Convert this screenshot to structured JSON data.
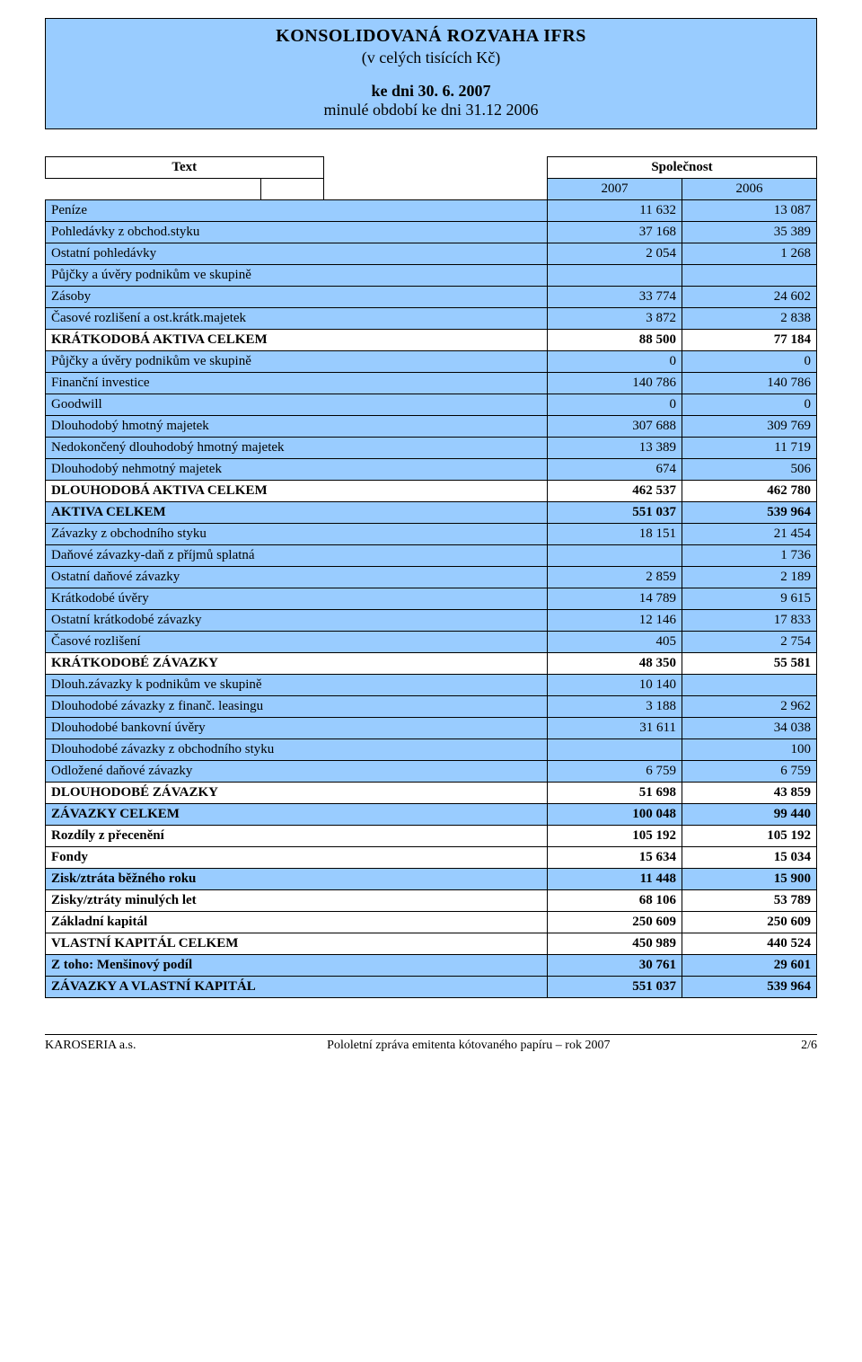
{
  "title": {
    "main": "KONSOLIDOVANÁ  ROZVAHA  IFRS",
    "sub": "(v celých tisících Kč)",
    "date1": "ke dni 30. 6. 2007",
    "date2": "minulé období  ke dni 31.12 2006"
  },
  "header": {
    "text": "Text",
    "company": "Společnost",
    "year1": "2007",
    "year2": "2006"
  },
  "rows": [
    {
      "label": "Peníze",
      "v1": "11 632",
      "v2": "13 087",
      "blue": true
    },
    {
      "label": "Pohledávky z obchod.styku",
      "v1": "37 168",
      "v2": "35 389",
      "blue": true
    },
    {
      "label": "Ostatní pohledávky",
      "v1": "2 054",
      "v2": "1 268",
      "blue": true
    },
    {
      "label": "Půjčky a úvěry podnikům ve skupině",
      "v1": "",
      "v2": "",
      "blue": true
    },
    {
      "label": "Zásoby",
      "v1": "33 774",
      "v2": "24 602",
      "blue": true
    },
    {
      "label": "Časové rozlišení a ost.krátk.majetek",
      "v1": "3 872",
      "v2": "2 838",
      "blue": true
    },
    {
      "label": "KRÁTKODOBÁ AKTIVA CELKEM",
      "v1": "88 500",
      "v2": "77 184",
      "bold": true
    },
    {
      "label": "Půjčky a úvěry podnikům ve skupině",
      "v1": "0",
      "v2": "0",
      "blue": true
    },
    {
      "label": "Finanční investice",
      "v1": "140 786",
      "v2": "140 786",
      "blue": true
    },
    {
      "label": "Goodwill",
      "v1": "0",
      "v2": "0",
      "blue": true
    },
    {
      "label": "Dlouhodobý hmotný majetek",
      "v1": "307 688",
      "v2": "309 769",
      "blue": true
    },
    {
      "label": "Nedokončený dlouhodobý hmotný majetek",
      "v1": "13 389",
      "v2": "11 719",
      "blue": true
    },
    {
      "label": "Dlouhodobý nehmotný majetek",
      "v1": "674",
      "v2": "506",
      "blue": true
    },
    {
      "label": "DLOUHODOBÁ AKTIVA CELKEM",
      "v1": "462 537",
      "v2": "462 780",
      "bold": true
    },
    {
      "label": "AKTIVA CELKEM",
      "v1": "551 037",
      "v2": "539 964",
      "blue": true,
      "bold": true
    },
    {
      "label": "Závazky z obchodního styku",
      "v1": "18 151",
      "v2": "21 454",
      "blue": true
    },
    {
      "label": "Daňové závazky-daň z příjmů splatná",
      "v1": "",
      "v2": "1 736",
      "blue": true
    },
    {
      "label": "Ostatní daňové závazky",
      "v1": "2 859",
      "v2": "2 189",
      "blue": true
    },
    {
      "label": "Krátkodobé úvěry",
      "v1": "14 789",
      "v2": "9 615",
      "blue": true
    },
    {
      "label": "Ostatní krátkodobé závazky",
      "v1": "12 146",
      "v2": "17 833",
      "blue": true
    },
    {
      "label": "Časové rozlišení",
      "v1": "405",
      "v2": "2 754",
      "blue": true
    },
    {
      "label": "KRÁTKODOBÉ ZÁVAZKY",
      "v1": "48 350",
      "v2": "55 581",
      "bold": true
    },
    {
      "label": "Dlouh.závazky k podnikům ve skupině",
      "v1": "10 140",
      "v2": "",
      "blue": true
    },
    {
      "label": "Dlouhodobé závazky z finanč. leasingu",
      "v1": "3 188",
      "v2": "2 962",
      "blue": true
    },
    {
      "label": "Dlouhodobé bankovní úvěry",
      "v1": "31 611",
      "v2": "34 038",
      "blue": true
    },
    {
      "label": "Dlouhodobé závazky z obchodního styku",
      "v1": "",
      "v2": "100",
      "blue": true
    },
    {
      "label": "Odložené daňové závazky",
      "v1": "6 759",
      "v2": "6 759",
      "blue": true
    },
    {
      "label": "DLOUHODOBÉ ZÁVAZKY",
      "v1": "51 698",
      "v2": "43 859",
      "bold": true
    },
    {
      "label": "ZÁVAZKY CELKEM",
      "v1": "100 048",
      "v2": "99 440",
      "blue": true,
      "bold": true
    },
    {
      "label": "Rozdíly z přecenění",
      "v1": "105 192",
      "v2": "105 192",
      "bold": true
    },
    {
      "label": "Fondy",
      "v1": "15 634",
      "v2": "15 034",
      "bold": true
    },
    {
      "label": "Zisk/ztráta běžného roku",
      "v1": "11 448",
      "v2": "15 900",
      "blue": true,
      "bold": true
    },
    {
      "label": "Zisky/ztráty minulých let",
      "v1": "68 106",
      "v2": "53 789",
      "bold": true
    },
    {
      "label": "Základní kapitál",
      "v1": "250 609",
      "v2": "250 609",
      "bold": true
    },
    {
      "label": "VLASTNÍ KAPITÁL CELKEM",
      "v1": "450 989",
      "v2": "440 524",
      "bold": true
    },
    {
      "label": " Z toho: Menšinový podíl",
      "v1": "30 761",
      "v2": "29 601",
      "blue": true,
      "bold": true
    },
    {
      "label": "ZÁVAZKY A VLASTNÍ KAPITÁL",
      "v1": "551 037",
      "v2": "539 964",
      "blue": true,
      "bold": true
    }
  ],
  "footer": {
    "left": "KAROSERIA a.s.",
    "center": "Pololetní zpráva emitenta kótovaného papíru – rok 2007",
    "right": "2/6"
  },
  "colors": {
    "blue": "#99ccff",
    "border": "#000000",
    "bg": "#ffffff"
  }
}
